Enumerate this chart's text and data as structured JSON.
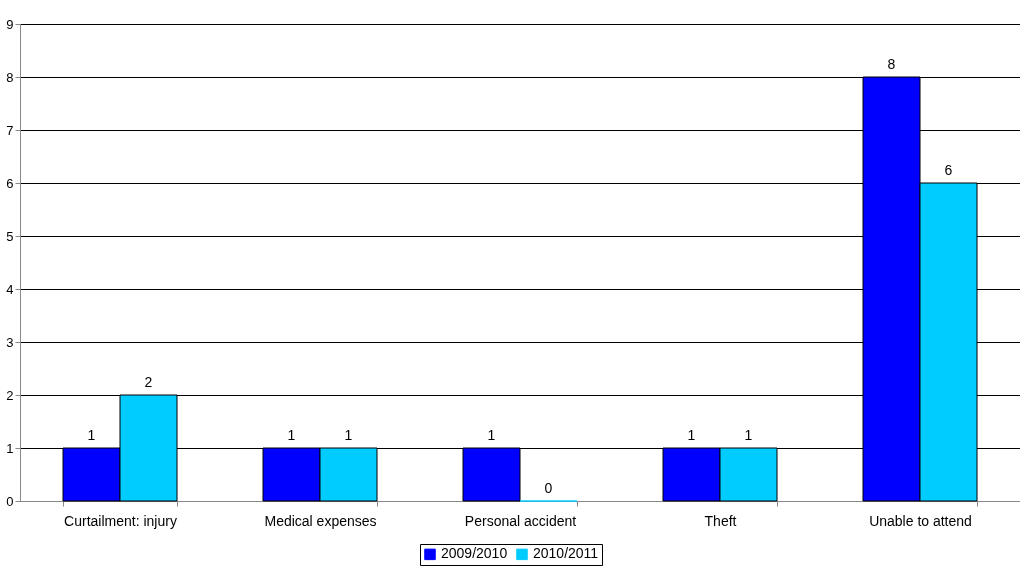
{
  "chart_data": {
    "type": "bar",
    "categories": [
      "Curtailment: injury",
      "Medical expenses",
      "Personal accident",
      "Theft",
      "Unable to attend"
    ],
    "series": [
      {
        "name": "2009/2010",
        "color": "#0000ff",
        "values": [
          1,
          1,
          1,
          1,
          8
        ]
      },
      {
        "name": "2010/2011",
        "color": "#00ccff",
        "values": [
          2,
          1,
          0,
          1,
          6
        ]
      }
    ],
    "ylim": [
      0,
      9
    ],
    "yticks": [
      0,
      1,
      2,
      3,
      4,
      5,
      6,
      7,
      8,
      9
    ],
    "grid": "y",
    "legend": "bottom",
    "data_labels": true
  }
}
